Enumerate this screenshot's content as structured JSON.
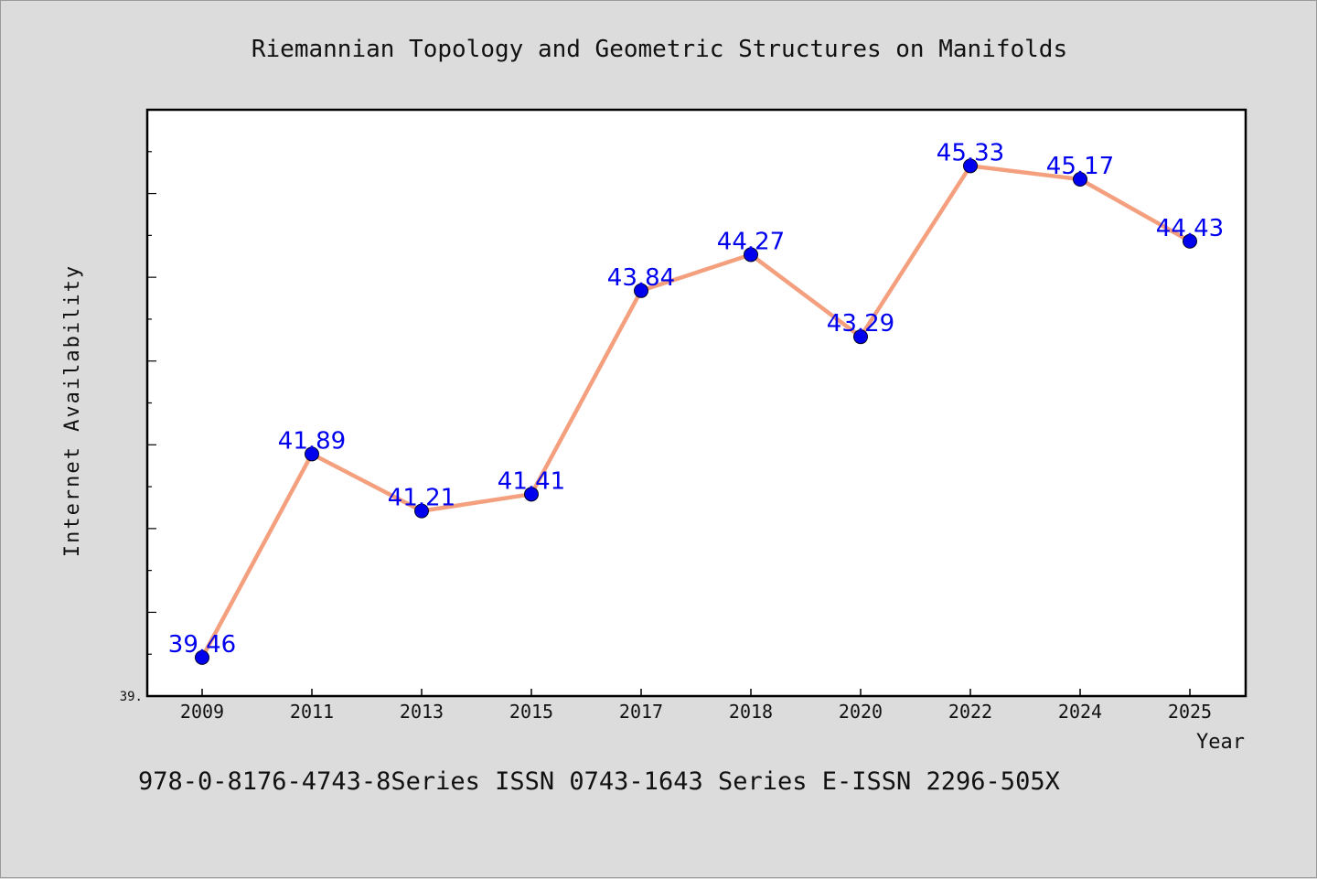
{
  "chart_data": {
    "type": "line",
    "title": "Riemannian Topology and Geometric Structures on Manifolds",
    "xlabel": "Year",
    "ylabel": "Internet Availability",
    "categories": [
      "2009",
      "2011",
      "2013",
      "2015",
      "2017",
      "2018",
      "2020",
      "2022",
      "2024",
      "2025"
    ],
    "series": [
      {
        "values": [
          39.46,
          41.89,
          41.21,
          41.41,
          43.84,
          44.27,
          43.29,
          45.33,
          45.17,
          44.43
        ],
        "labels": [
          "39.46",
          "41.89",
          "41.21",
          "41.41",
          "43.84",
          "44.27",
          "43.29",
          "45.33",
          "45.17",
          "44.43"
        ]
      }
    ],
    "ylim": [
      39.0,
      46.0
    ],
    "y_tick_label": "39.",
    "grid": false,
    "line_color": "#f4a07e",
    "marker_color": "#0000ee",
    "label_color": "#0000ee"
  },
  "footer": {
    "text": "978-0-8176-4743-8Series ISSN 0743-1643 Series E-ISSN 2296-505X"
  }
}
